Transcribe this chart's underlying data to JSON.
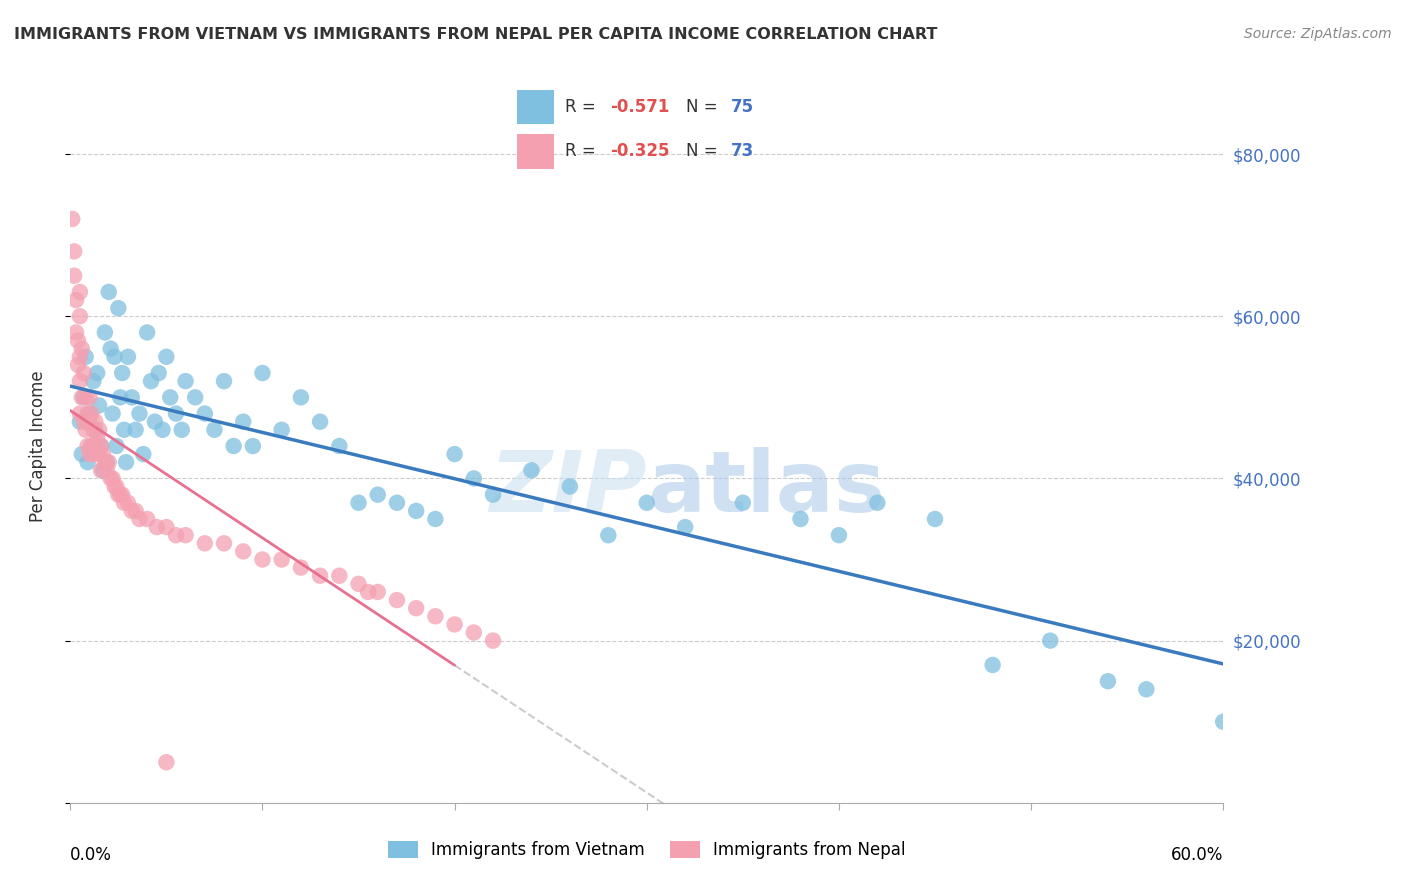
{
  "title": "IMMIGRANTS FROM VIETNAM VS IMMIGRANTS FROM NEPAL PER CAPITA INCOME CORRELATION CHART",
  "source": "Source: ZipAtlas.com",
  "ylabel": "Per Capita Income",
  "xlim": [
    0.0,
    0.6
  ],
  "ylim": [
    0,
    88000
  ],
  "yticks": [
    0,
    20000,
    40000,
    60000,
    80000
  ],
  "ytick_labels": [
    "",
    "$20,000",
    "$40,000",
    "$60,000",
    "$80,000"
  ],
  "xtick_left": "0.0%",
  "xtick_right": "60.0%",
  "vietnam_color": "#7fbfdf",
  "nepal_color": "#f4a0b0",
  "vietnam_line_color": "#3a7abf",
  "nepal_line_color": "#e87090",
  "watermark_zip": "ZIP",
  "watermark_atlas": "atlas",
  "vietnam_x": [
    0.005,
    0.006,
    0.007,
    0.008,
    0.009,
    0.01,
    0.011,
    0.012,
    0.013,
    0.014,
    0.015,
    0.016,
    0.017,
    0.018,
    0.019,
    0.02,
    0.021,
    0.022,
    0.023,
    0.024,
    0.025,
    0.026,
    0.027,
    0.028,
    0.029,
    0.03,
    0.032,
    0.034,
    0.036,
    0.038,
    0.04,
    0.042,
    0.044,
    0.046,
    0.048,
    0.05,
    0.052,
    0.055,
    0.058,
    0.06,
    0.065,
    0.07,
    0.075,
    0.08,
    0.085,
    0.09,
    0.095,
    0.1,
    0.11,
    0.12,
    0.13,
    0.14,
    0.15,
    0.16,
    0.17,
    0.18,
    0.19,
    0.2,
    0.21,
    0.22,
    0.24,
    0.26,
    0.28,
    0.3,
    0.32,
    0.35,
    0.38,
    0.4,
    0.42,
    0.45,
    0.48,
    0.51,
    0.54,
    0.56,
    0.6
  ],
  "vietnam_y": [
    47000,
    43000,
    50000,
    55000,
    42000,
    48000,
    44000,
    52000,
    46000,
    53000,
    49000,
    44000,
    41000,
    58000,
    42000,
    63000,
    56000,
    48000,
    55000,
    44000,
    61000,
    50000,
    53000,
    46000,
    42000,
    55000,
    50000,
    46000,
    48000,
    43000,
    58000,
    52000,
    47000,
    53000,
    46000,
    55000,
    50000,
    48000,
    46000,
    52000,
    50000,
    48000,
    46000,
    52000,
    44000,
    47000,
    44000,
    53000,
    46000,
    50000,
    47000,
    44000,
    37000,
    38000,
    37000,
    36000,
    35000,
    43000,
    40000,
    38000,
    41000,
    39000,
    33000,
    37000,
    34000,
    37000,
    35000,
    33000,
    37000,
    35000,
    17000,
    20000,
    15000,
    14000,
    10000
  ],
  "nepal_x": [
    0.001,
    0.002,
    0.002,
    0.003,
    0.003,
    0.004,
    0.004,
    0.005,
    0.005,
    0.005,
    0.005,
    0.005,
    0.006,
    0.006,
    0.007,
    0.007,
    0.008,
    0.008,
    0.009,
    0.009,
    0.01,
    0.01,
    0.01,
    0.011,
    0.011,
    0.012,
    0.012,
    0.013,
    0.013,
    0.014,
    0.015,
    0.015,
    0.016,
    0.016,
    0.017,
    0.018,
    0.019,
    0.02,
    0.021,
    0.022,
    0.023,
    0.024,
    0.025,
    0.026,
    0.027,
    0.028,
    0.03,
    0.032,
    0.034,
    0.036,
    0.04,
    0.045,
    0.05,
    0.055,
    0.06,
    0.07,
    0.08,
    0.09,
    0.1,
    0.11,
    0.12,
    0.13,
    0.14,
    0.15,
    0.155,
    0.16,
    0.17,
    0.18,
    0.19,
    0.2,
    0.21,
    0.22,
    0.05
  ],
  "nepal_y": [
    72000,
    65000,
    68000,
    62000,
    58000,
    54000,
    57000,
    63000,
    55000,
    60000,
    52000,
    48000,
    56000,
    50000,
    53000,
    47000,
    50000,
    46000,
    48000,
    44000,
    50000,
    47000,
    43000,
    48000,
    44000,
    46000,
    43000,
    47000,
    44000,
    45000,
    46000,
    43000,
    44000,
    41000,
    43000,
    42000,
    41000,
    42000,
    40000,
    40000,
    39000,
    39000,
    38000,
    38000,
    38000,
    37000,
    37000,
    36000,
    36000,
    35000,
    35000,
    34000,
    34000,
    33000,
    33000,
    32000,
    32000,
    31000,
    30000,
    30000,
    29000,
    28000,
    28000,
    27000,
    26000,
    26000,
    25000,
    24000,
    23000,
    22000,
    21000,
    20000,
    5000
  ],
  "nepal_line_x_end": 0.2,
  "vietnam_line_x_end": 0.6
}
